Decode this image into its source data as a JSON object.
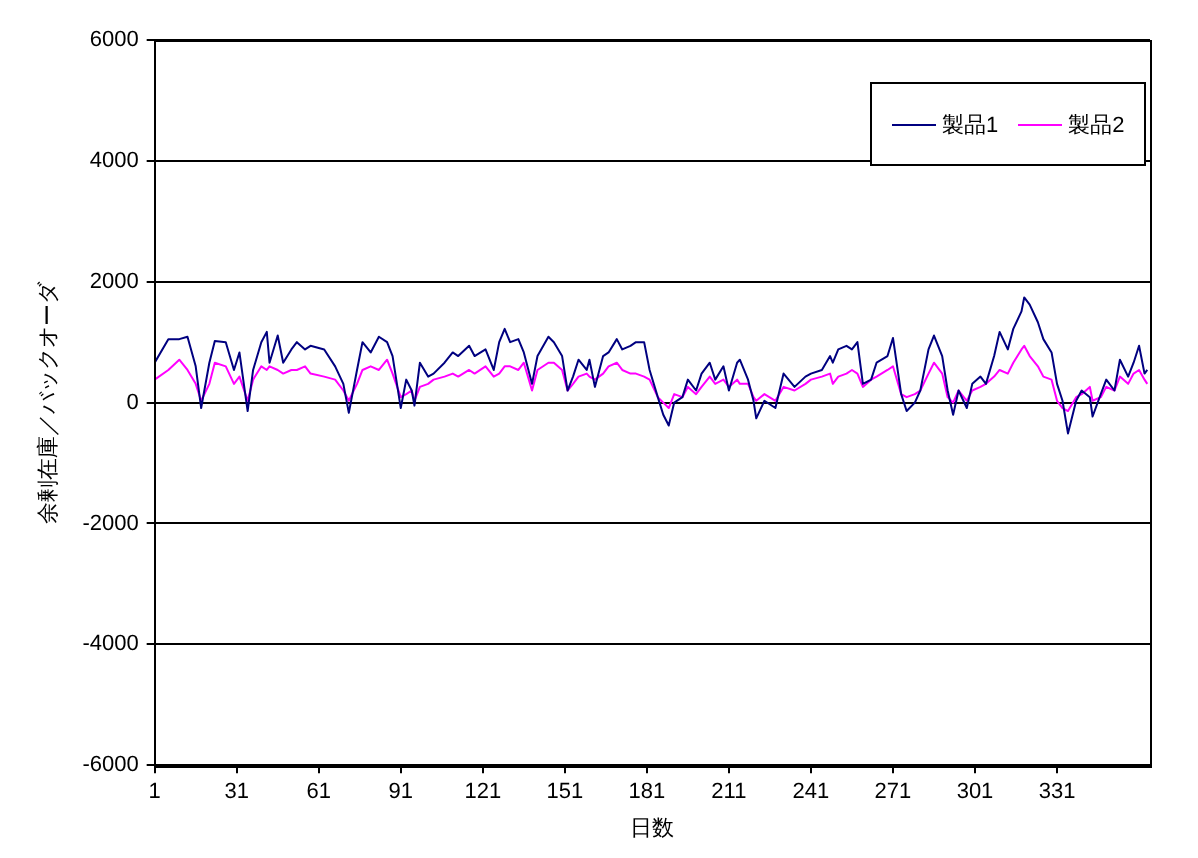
{
  "chart_data": {
    "type": "line",
    "xlabel": "日数",
    "ylabel": "余剰在庫／バックオーダ",
    "x": [
      1,
      6,
      10,
      13,
      16,
      18,
      21,
      23,
      27,
      30,
      32,
      35,
      37,
      40,
      42,
      43,
      46,
      48,
      51,
      53,
      56,
      58,
      63,
      67,
      70,
      72,
      75,
      77,
      80,
      83,
      86,
      88,
      91,
      93,
      95,
      96,
      98,
      101,
      103,
      107,
      110,
      112,
      116,
      118,
      122,
      125,
      127,
      129,
      131,
      134,
      136,
      139,
      141,
      145,
      147,
      150,
      152,
      154,
      156,
      159,
      160,
      162,
      165,
      167,
      170,
      172,
      175,
      177,
      180,
      182,
      185,
      187,
      189,
      191,
      194,
      196,
      199,
      201,
      204,
      206,
      209,
      211,
      214,
      215,
      218,
      220,
      221,
      224,
      228,
      231,
      235,
      239,
      241,
      245,
      248,
      249,
      251,
      254,
      256,
      258,
      260,
      263,
      265,
      269,
      271,
      274,
      276,
      279,
      281,
      284,
      286,
      289,
      291,
      293,
      295,
      298,
      300,
      303,
      305,
      308,
      310,
      313,
      315,
      318,
      319,
      321,
      324,
      326,
      329,
      331,
      333,
      335,
      338,
      340,
      343,
      344,
      347,
      349,
      352,
      354,
      357,
      359,
      361,
      363,
      364
    ],
    "series": [
      {
        "name": "製品1",
        "color": "#000080",
        "values": [
          660,
          1050,
          1050,
          1090,
          600,
          -90,
          660,
          1020,
          1000,
          540,
          830,
          -140,
          540,
          1000,
          1170,
          660,
          1110,
          660,
          880,
          1000,
          880,
          940,
          880,
          600,
          310,
          -170,
          540,
          1000,
          830,
          1090,
          1000,
          770,
          -90,
          380,
          200,
          -50,
          660,
          430,
          480,
          660,
          830,
          770,
          940,
          770,
          880,
          540,
          1000,
          1220,
          1000,
          1050,
          830,
          310,
          770,
          1090,
          1000,
          770,
          200,
          430,
          710,
          540,
          710,
          260,
          770,
          830,
          1050,
          880,
          940,
          1000,
          1000,
          540,
          90,
          -200,
          -380,
          0,
          90,
          380,
          200,
          480,
          660,
          380,
          600,
          200,
          660,
          710,
          380,
          30,
          -260,
          30,
          -90,
          480,
          260,
          430,
          480,
          540,
          770,
          660,
          880,
          940,
          880,
          1000,
          310,
          380,
          660,
          770,
          1070,
          140,
          -140,
          0,
          200,
          880,
          1110,
          770,
          200,
          -200,
          200,
          -90,
          310,
          430,
          310,
          770,
          1170,
          880,
          1220,
          1510,
          1740,
          1620,
          1330,
          1050,
          830,
          310,
          30,
          -510,
          30,
          200,
          90,
          -230,
          140,
          380,
          200,
          710,
          430,
          660,
          940,
          480,
          540
        ]
      },
      {
        "name": "製品2",
        "color": "#ff00ff",
        "values": [
          380,
          540,
          710,
          540,
          310,
          30,
          310,
          660,
          600,
          310,
          430,
          30,
          380,
          600,
          540,
          600,
          540,
          480,
          540,
          540,
          600,
          480,
          430,
          380,
          200,
          30,
          310,
          540,
          600,
          540,
          710,
          480,
          90,
          140,
          200,
          30,
          260,
          310,
          380,
          430,
          480,
          430,
          540,
          480,
          600,
          430,
          480,
          600,
          600,
          540,
          660,
          200,
          540,
          660,
          660,
          540,
          200,
          310,
          430,
          480,
          430,
          380,
          480,
          600,
          660,
          540,
          480,
          480,
          430,
          380,
          90,
          0,
          -90,
          140,
          90,
          260,
          140,
          260,
          430,
          310,
          380,
          260,
          380,
          310,
          310,
          90,
          30,
          140,
          30,
          260,
          200,
          310,
          380,
          430,
          480,
          310,
          430,
          480,
          540,
          480,
          260,
          380,
          430,
          540,
          600,
          140,
          90,
          140,
          200,
          480,
          660,
          480,
          90,
          0,
          200,
          30,
          200,
          260,
          310,
          430,
          540,
          480,
          660,
          880,
          940,
          770,
          600,
          430,
          380,
          30,
          -90,
          -140,
          90,
          140,
          260,
          30,
          90,
          260,
          200,
          430,
          310,
          480,
          540,
          380,
          310
        ]
      }
    ],
    "xlim": [
      1,
      365
    ],
    "xticks": [
      1,
      31,
      61,
      91,
      121,
      151,
      181,
      211,
      241,
      271,
      301,
      331
    ],
    "ylim": [
      -6000,
      6000
    ],
    "yticks": [
      -6000,
      -4000,
      -2000,
      0,
      2000,
      4000,
      6000
    ],
    "grid": "y",
    "legend": "top right",
    "marker": "none",
    "line_style": "solid"
  }
}
